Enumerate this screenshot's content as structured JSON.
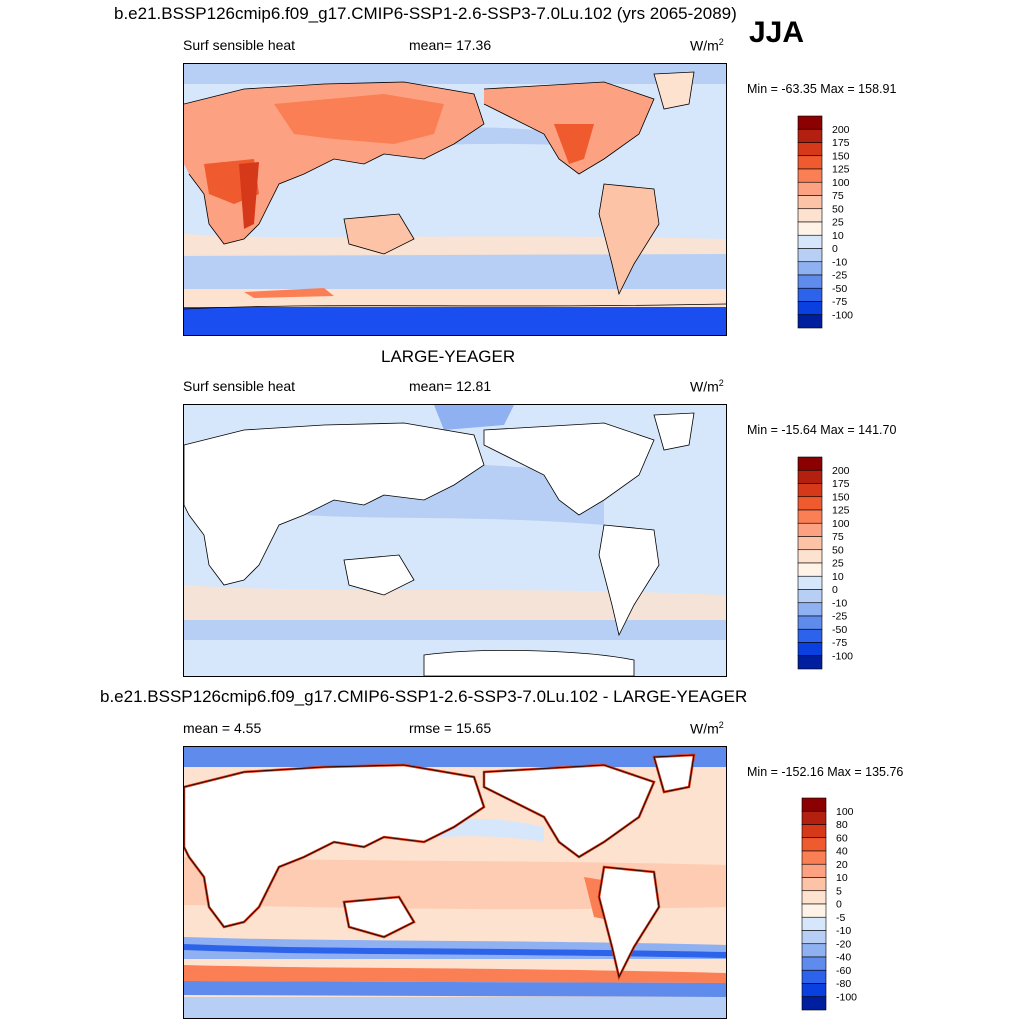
{
  "season_label": "JJA",
  "panels": [
    {
      "title": "b.e21.BSSP126cmip6.f09_g17.CMIP6-SSP1-2.6-SSP3-7.0Lu.102 (yrs 2065-2089)",
      "left_label": "Surf sensible heat",
      "center_label": "mean=  17.36",
      "unit": "W/m",
      "unit_sup": "2",
      "minmax": "Min = -63.35 Max = 158.91",
      "colorbar_labels": [
        "200",
        "175",
        "150",
        "125",
        "100",
        "75",
        "50",
        "25",
        "10",
        "0",
        "-10",
        "-25",
        "-50",
        "-75",
        "-100"
      ],
      "colorbar_colors": [
        "#8b0000",
        "#b3200f",
        "#d6391a",
        "#ef5a2e",
        "#fb7f55",
        "#fca282",
        "#fdc3a7",
        "#fde2cf",
        "#fff3e8",
        "#d7e7fb",
        "#b7cff5",
        "#8fb0f1",
        "#5e8bec",
        "#2c63ea",
        "#0a3fe0",
        "#001f9e"
      ]
    },
    {
      "title": "LARGE-YEAGER",
      "left_label": "Surf sensible heat",
      "center_label": "mean=  12.81",
      "unit": "W/m",
      "unit_sup": "2",
      "minmax": "Min = -15.64 Max = 141.70",
      "colorbar_labels": [
        "200",
        "175",
        "150",
        "125",
        "100",
        "75",
        "50",
        "25",
        "10",
        "0",
        "-10",
        "-25",
        "-50",
        "-75",
        "-100"
      ],
      "colorbar_colors": [
        "#8b0000",
        "#b3200f",
        "#d6391a",
        "#ef5a2e",
        "#fb7f55",
        "#fca282",
        "#fdc3a7",
        "#fde2cf",
        "#fff3e8",
        "#d7e7fb",
        "#b7cff5",
        "#8fb0f1",
        "#5e8bec",
        "#2c63ea",
        "#0a3fe0",
        "#001f9e"
      ]
    },
    {
      "title": "b.e21.BSSP126cmip6.f09_g17.CMIP6-SSP1-2.6-SSP3-7.0Lu.102 - LARGE-YEAGER",
      "left_label": "mean =   4.55",
      "center_label": "rmse =  15.65",
      "unit": "W/m",
      "unit_sup": "2",
      "minmax": "Min = -152.16 Max = 135.76",
      "colorbar_labels": [
        "100",
        "80",
        "60",
        "40",
        "20",
        "10",
        "5",
        "0",
        "-5",
        "-10",
        "-20",
        "-40",
        "-60",
        "-80",
        "-100"
      ],
      "colorbar_colors": [
        "#8b0000",
        "#b3200f",
        "#d6391a",
        "#ef5a2e",
        "#fb7f55",
        "#fca282",
        "#fdc3a7",
        "#fde2cf",
        "#fff3e8",
        "#d7e7fb",
        "#b7cff5",
        "#8fb0f1",
        "#5e8bec",
        "#2c63ea",
        "#0a3fe0",
        "#001f9e"
      ]
    }
  ],
  "chart_data": [
    {
      "type": "heatmap",
      "title": "b.e21.BSSP126cmip6.f09_g17.CMIP6-SSP1-2.6-SSP3-7.0Lu.102 (yrs 2065-2089)",
      "variable": "Surf sensible heat",
      "units": "W/m2",
      "season": "JJA",
      "mean": 17.36,
      "min": -63.35,
      "max": 158.91,
      "contour_levels": [
        -100,
        -75,
        -50,
        -25,
        -10,
        0,
        10,
        25,
        50,
        75,
        100,
        125,
        150,
        175,
        200
      ]
    },
    {
      "type": "heatmap",
      "title": "LARGE-YEAGER",
      "variable": "Surf sensible heat",
      "units": "W/m2",
      "mean": 12.81,
      "min": -15.64,
      "max": 141.7,
      "contour_levels": [
        -100,
        -75,
        -50,
        -25,
        -10,
        0,
        10,
        25,
        50,
        75,
        100,
        125,
        150,
        175,
        200
      ]
    },
    {
      "type": "heatmap",
      "title": "b.e21.BSSP126cmip6.f09_g17.CMIP6-SSP1-2.6-SSP3-7.0Lu.102 - LARGE-YEAGER",
      "units": "W/m2",
      "mean": 4.55,
      "rmse": 15.65,
      "min": -152.16,
      "max": 135.76,
      "contour_levels": [
        -100,
        -80,
        -60,
        -40,
        -20,
        -10,
        -5,
        0,
        5,
        10,
        20,
        40,
        60,
        80,
        100
      ]
    }
  ]
}
